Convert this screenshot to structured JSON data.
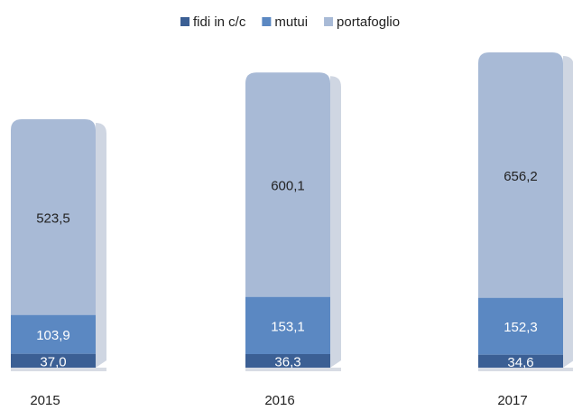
{
  "chart_data": {
    "type": "bar",
    "stacked": true,
    "categories": [
      "2015",
      "2016",
      "2017"
    ],
    "series": [
      {
        "name": "fidi in c/c",
        "color": "#3b5f94",
        "values": [
          37.0,
          36.3,
          34.6
        ],
        "value_labels": [
          "37,0",
          "36,3",
          "34,6"
        ]
      },
      {
        "name": "mutui",
        "color": "#5b88c2",
        "values": [
          103.9,
          153.1,
          152.3
        ],
        "value_labels": [
          "103,9",
          "153,1",
          "152,3"
        ]
      },
      {
        "name": "portafoglio",
        "color": "#a8bad6",
        "values": [
          523.5,
          600.1,
          656.2
        ],
        "value_labels": [
          "523,5",
          "600,1",
          "656,2"
        ]
      }
    ],
    "legend": "top"
  }
}
